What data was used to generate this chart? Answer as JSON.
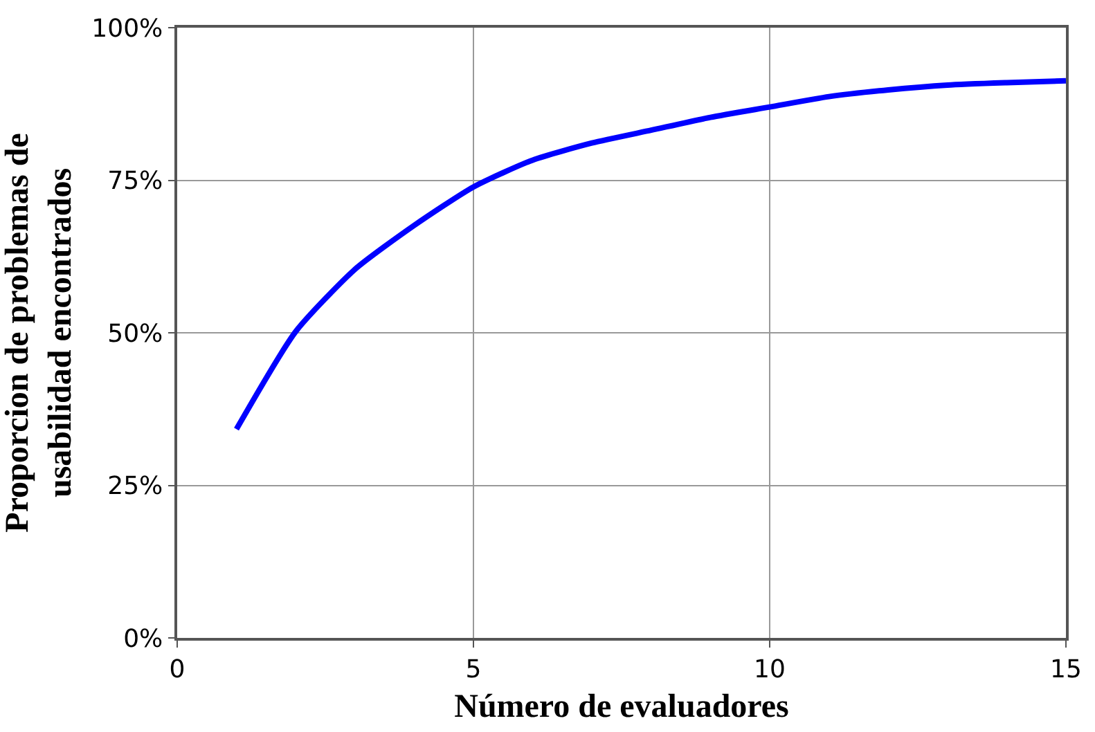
{
  "chart_data": {
    "type": "line",
    "xlabel": "Número de evaluadores",
    "ylabel": "Proporcion de problemas de\nusabilidad encontrados",
    "x": [
      1,
      2,
      3,
      4,
      5,
      6,
      7,
      8,
      9,
      10,
      11,
      12,
      13,
      14,
      15
    ],
    "series": [
      {
        "color": "#0000ff",
        "values": [
          34.2,
          50.2,
          60.4,
          67.6,
          73.9,
          78.3,
          81.1,
          83.2,
          85.3,
          87.0,
          88.7,
          89.8,
          90.6,
          91.0,
          91.3
        ]
      }
    ],
    "xlim": [
      0,
      15
    ],
    "xticks": [
      0,
      5,
      10,
      15
    ],
    "ylim": [
      0,
      100
    ],
    "yticks": [
      {
        "value": 0,
        "label": "0%"
      },
      {
        "value": 25,
        "label": "25%"
      },
      {
        "value": 50,
        "label": "50%"
      },
      {
        "value": 75,
        "label": "75%"
      },
      {
        "value": 100,
        "label": "100%"
      }
    ],
    "grid": true,
    "marker": "none",
    "line_style": "solid"
  }
}
